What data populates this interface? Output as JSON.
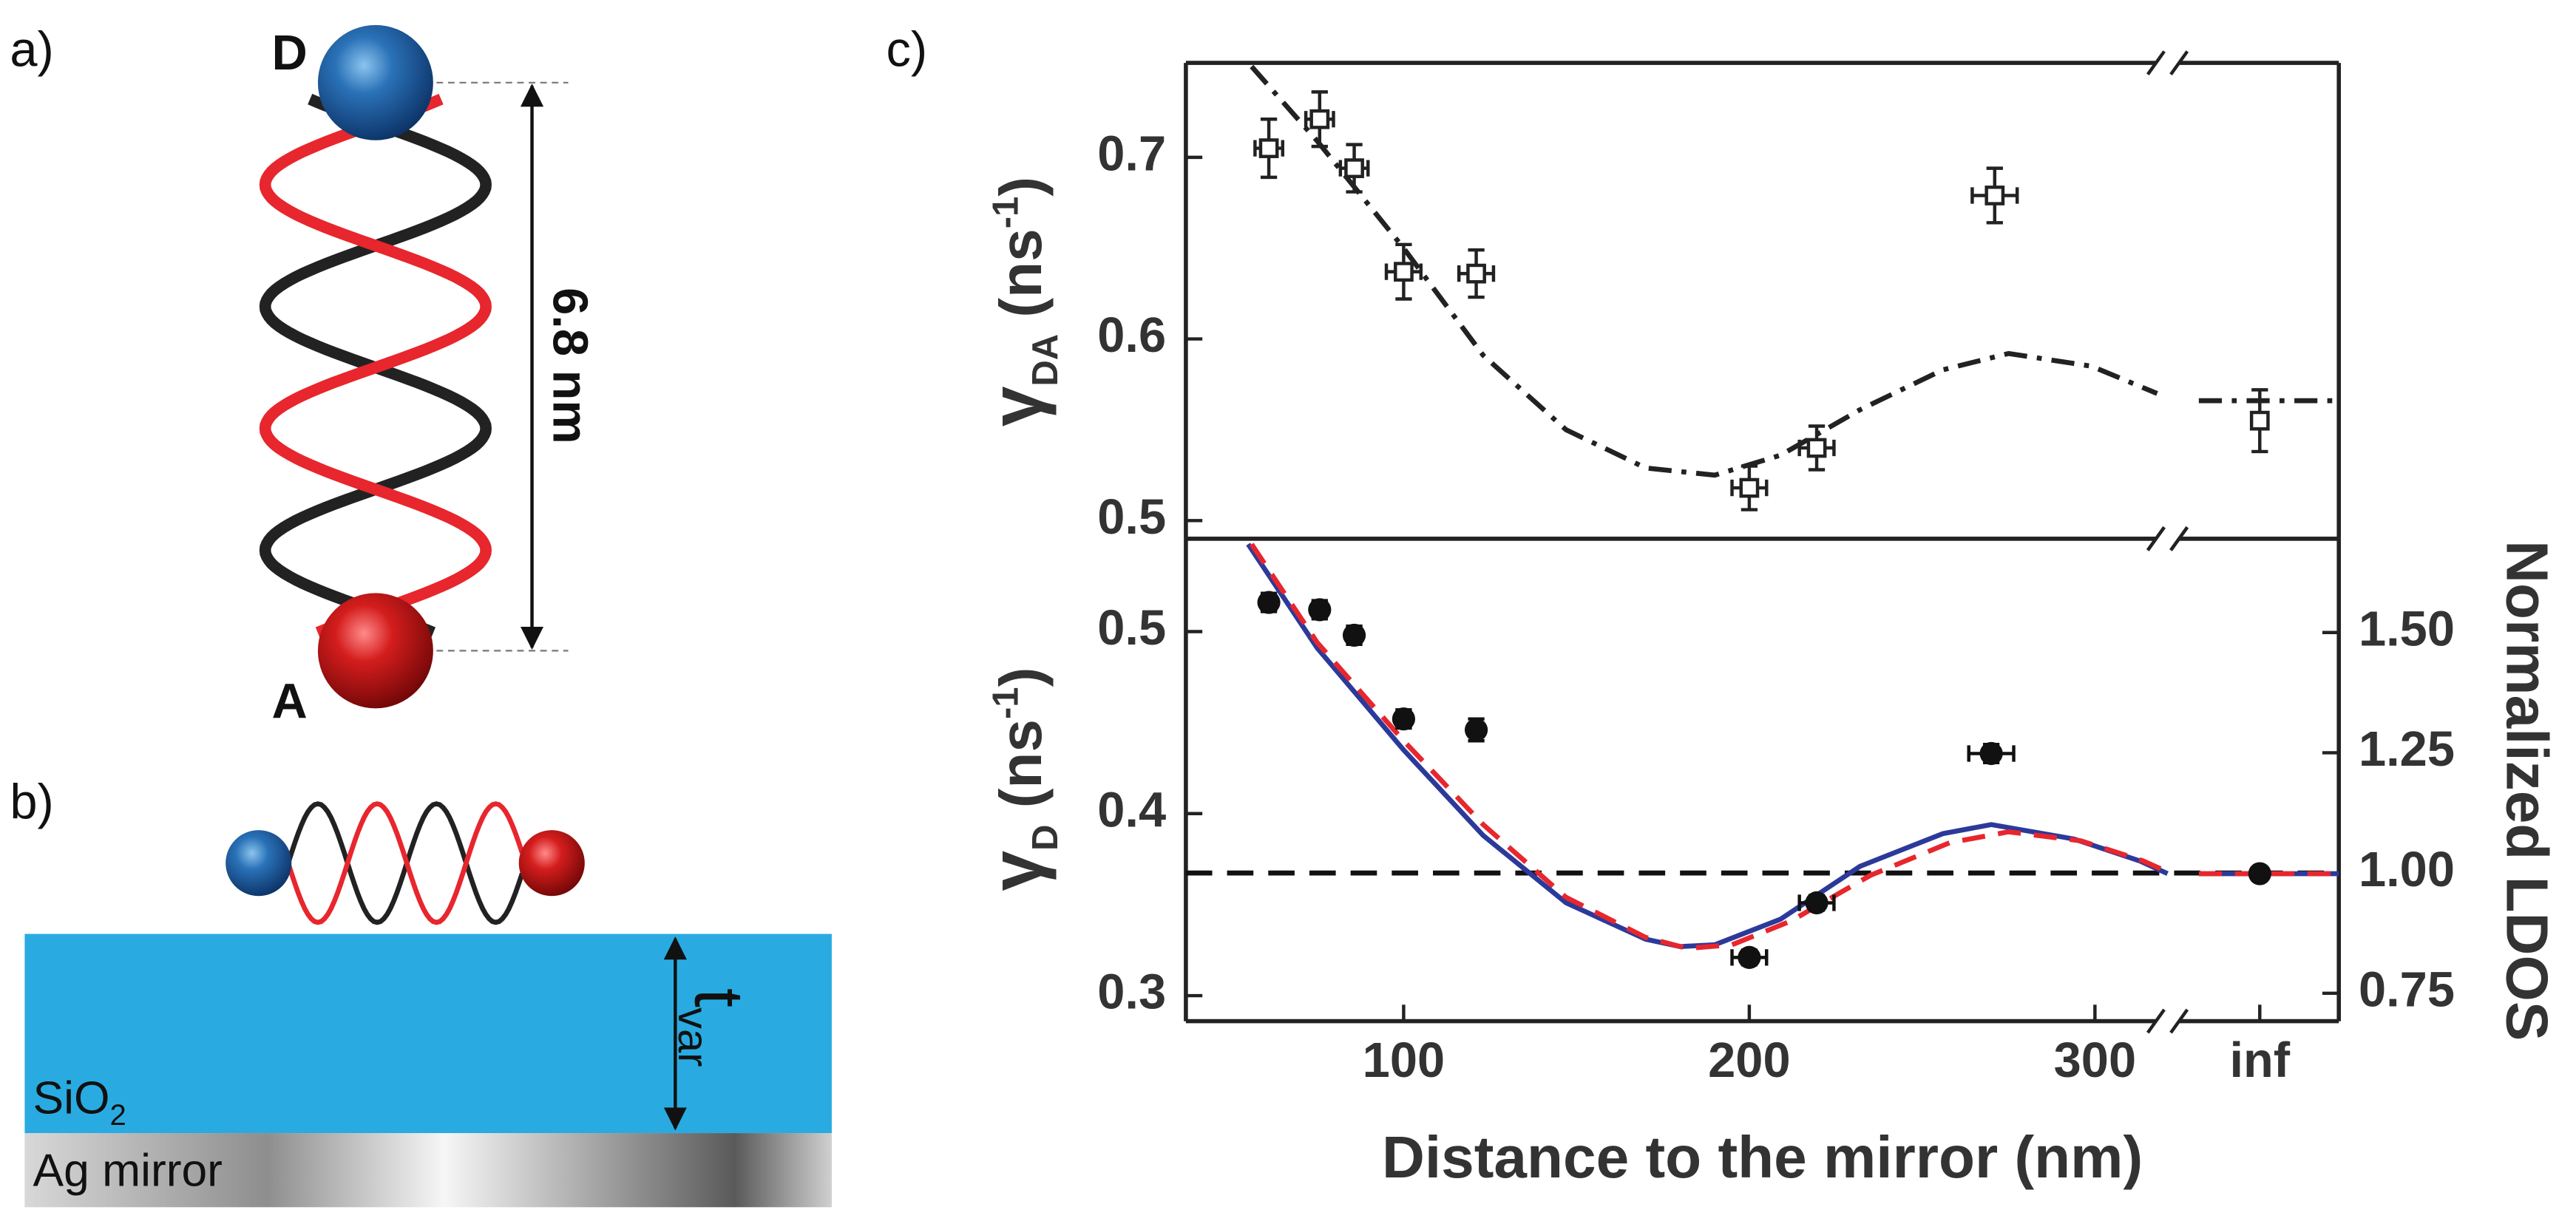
{
  "panel_labels": {
    "a": "a)",
    "b": "b)",
    "c": "c)"
  },
  "diagram_a": {
    "donor": "D",
    "acceptor": "A",
    "length": "6.8 nm"
  },
  "diagram_b": {
    "layer": {
      "text": "SiO",
      "subscript": "2"
    },
    "mirror": "Ag mirror",
    "thickness": {
      "symbol": "t",
      "subscript": "var"
    }
  },
  "chart_data": [
    {
      "type": "scatter",
      "ylabel": {
        "symbol": "γ",
        "subscript": "DA",
        "unit": " (ns",
        "superscript": "-1",
        "close": ")"
      },
      "x": [
        61,
        75.7,
        85.7,
        100,
        121,
        200,
        219.5,
        271,
        "inf"
      ],
      "xlim": [
        37,
        321
      ],
      "ylim": [
        0.49,
        0.752
      ],
      "yticks": [
        {
          "value": 0.5,
          "label": "0.5"
        },
        {
          "value": 0.6,
          "label": "0.6"
        },
        {
          "value": 0.7,
          "label": "0.7"
        }
      ],
      "series": [
        {
          "color": "#222222",
          "marker": "open-square",
          "values": [
            0.705,
            0.721,
            0.694,
            0.637,
            0.636,
            0.518,
            0.54,
            0.679,
            0.555
          ],
          "errors": [
            0.016,
            0.015,
            0.013,
            0.015,
            0.013,
            0.012,
            0.012,
            0.015,
            0.017
          ],
          "xerrors": [
            4,
            4,
            4,
            5,
            5,
            5,
            5,
            6.5,
            null
          ]
        }
      ],
      "curves": [
        {
          "color": "#222222",
          "dash": "dashdot",
          "x": [
            56,
            75,
            100,
            123,
            147,
            170,
            190,
            209,
            232,
            256,
            275,
            299,
            318,
            "inf"
          ],
          "values": [
            0.75,
            0.709,
            0.65,
            0.591,
            0.55,
            0.529,
            0.525,
            0.536,
            0.561,
            0.583,
            0.592,
            0.585,
            0.57,
            0.566
          ]
        }
      ]
    },
    {
      "type": "scatter",
      "ylabel": {
        "symbol": "γ",
        "subscript": "D",
        "unit": " (ns",
        "superscript": "-1",
        "close": ")"
      },
      "y2label": "Normalized LDOS",
      "xlabel": "Distance to the mirror (nm)",
      "x": [
        61,
        75.7,
        85.7,
        100,
        121,
        200,
        219.5,
        270,
        "inf"
      ],
      "xlim": [
        37,
        321
      ],
      "xticks": [
        100,
        200,
        300,
        "inf"
      ],
      "ylim": [
        0.286,
        0.551
      ],
      "yticks": [
        {
          "value": 0.3,
          "label": "0.3"
        },
        {
          "value": 0.4,
          "label": "0.4"
        },
        {
          "value": 0.5,
          "label": "0.5"
        }
      ],
      "y2lim": [
        0.692,
        1.695
      ],
      "y2ticks": [
        {
          "value": 0.75,
          "label": "0.75"
        },
        {
          "value": 1.0,
          "label": "1.00"
        },
        {
          "value": 1.25,
          "label": "1.25"
        },
        {
          "value": 1.5,
          "label": "1.50"
        }
      ],
      "reference": {
        "axis": "y2",
        "value": 1.0,
        "color": "#111111"
      },
      "series": [
        {
          "color": "#111111",
          "marker": "filled-circle",
          "values": [
            0.516,
            0.512,
            0.498,
            0.452,
            0.446,
            0.321,
            0.351,
            0.433,
            0.367
          ],
          "errors": [
            0.005,
            0.005,
            0.005,
            0.005,
            0.006,
            0.004,
            0.004,
            0.005,
            0.003
          ],
          "xerrors": [
            2,
            2,
            2,
            2,
            2,
            5,
            5,
            6.5,
            null
          ]
        }
      ],
      "curves": [
        {
          "color": "#2b3a9a",
          "dash": "solid",
          "x": [
            55,
            75,
            100,
            123,
            147,
            170,
            180,
            190,
            209,
            232,
            256,
            270,
            294,
            313,
            321,
            "inf"
          ],
          "values": [
            0.548,
            0.491,
            0.435,
            0.388,
            0.351,
            0.331,
            0.327,
            0.328,
            0.342,
            0.371,
            0.389,
            0.394,
            0.386,
            0.374,
            0.367,
            0.367
          ]
        },
        {
          "color": "#e8262d",
          "dash": "dashed",
          "x": [
            56,
            75,
            100,
            123,
            147,
            170,
            182,
            195,
            212,
            235,
            258,
            275,
            296,
            314,
            321,
            "inf"
          ],
          "values": [
            0.548,
            0.494,
            0.44,
            0.394,
            0.354,
            0.332,
            0.326,
            0.328,
            0.341,
            0.366,
            0.384,
            0.39,
            0.385,
            0.374,
            0.368,
            0.367
          ]
        }
      ]
    }
  ]
}
